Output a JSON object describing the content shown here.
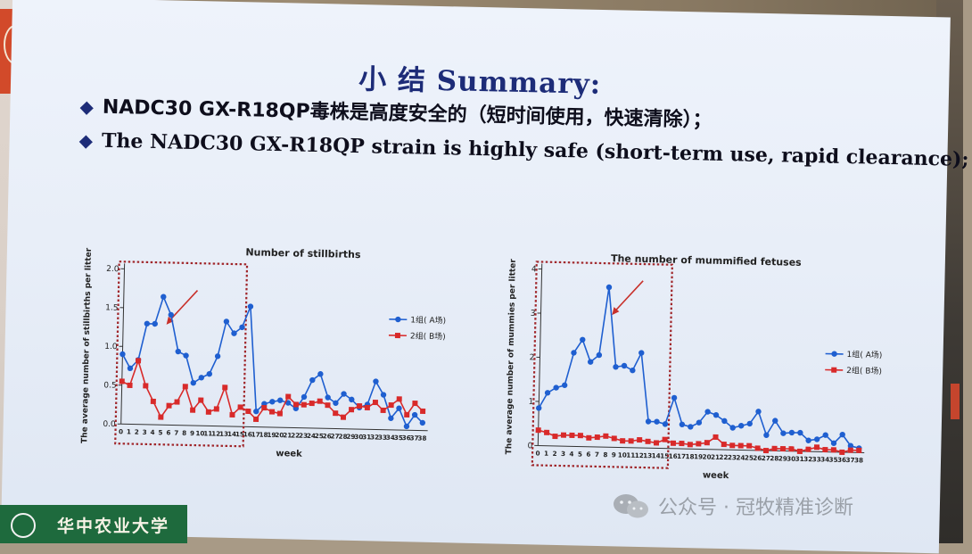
{
  "slide": {
    "title": "小 结 Summary:",
    "bullets": [
      "NADC30 GX-R18QP毒株是高度安全的（短时间使用，快速清除）；",
      "The NADC30 GX-R18QP strain is highly safe (short-term use, rapid clearance);"
    ],
    "bullet_icon": "diamond-bullet-icon"
  },
  "footer": {
    "university": "华中农业大学",
    "watermark": "公众号 · 冠牧精准诊断",
    "watermark_icon": "wechat-icon"
  },
  "chart_data": [
    {
      "type": "line",
      "title": "Number of stillbirths",
      "xlabel": "week",
      "ylabel": "The average number of stillbirths per litter",
      "x": [
        0,
        1,
        2,
        3,
        4,
        5,
        6,
        7,
        8,
        9,
        10,
        11,
        12,
        13,
        14,
        15,
        16,
        17,
        18,
        19,
        20,
        21,
        22,
        23,
        24,
        25,
        26,
        27,
        28,
        29,
        30,
        31,
        32,
        33,
        34,
        35,
        36,
        37,
        38
      ],
      "ylim": [
        0,
        2.0
      ],
      "yticks": [
        "0.0",
        "0.5",
        "1.0",
        "1.5",
        "2.0"
      ],
      "legend_position": "right",
      "highlight_box_weeks": [
        0,
        15
      ],
      "series": [
        {
          "name": "1组( A场)",
          "color": "#1f5fd0",
          "marker": "circle",
          "values": [
            0.9,
            0.72,
            0.83,
            1.3,
            1.3,
            1.65,
            1.42,
            0.95,
            0.9,
            0.55,
            0.62,
            0.67,
            0.9,
            1.35,
            1.2,
            1.28,
            1.55,
            0.2,
            0.3,
            0.33,
            0.35,
            0.32,
            0.25,
            0.4,
            0.62,
            0.7,
            0.4,
            0.33,
            0.45,
            0.38,
            0.28,
            0.32,
            0.62,
            0.45,
            0.15,
            0.28,
            0.05,
            0.2,
            0.1
          ]
        },
        {
          "name": "2组( B场)",
          "color": "#d82a2a",
          "marker": "square",
          "values": [
            0.55,
            0.5,
            0.82,
            0.5,
            0.3,
            0.1,
            0.25,
            0.3,
            0.5,
            0.2,
            0.33,
            0.18,
            0.22,
            0.5,
            0.15,
            0.25,
            0.2,
            0.1,
            0.25,
            0.2,
            0.18,
            0.4,
            0.3,
            0.3,
            0.32,
            0.35,
            0.3,
            0.2,
            0.15,
            0.25,
            0.3,
            0.28,
            0.35,
            0.25,
            0.32,
            0.4,
            0.2,
            0.35,
            0.25
          ]
        }
      ]
    },
    {
      "type": "line",
      "title": "The number of mummified fetuses",
      "xlabel": "week",
      "ylabel": "The average number of mummies per litter",
      "x": [
        0,
        1,
        2,
        3,
        4,
        5,
        6,
        7,
        8,
        9,
        10,
        11,
        12,
        13,
        14,
        15,
        16,
        17,
        18,
        19,
        20,
        21,
        22,
        23,
        24,
        25,
        26,
        27,
        28,
        29,
        30,
        31,
        32,
        33,
        34,
        35,
        36,
        37,
        38
      ],
      "ylim": [
        0,
        4
      ],
      "yticks": [
        "0",
        "1",
        "2",
        "3",
        "4"
      ],
      "legend_position": "right",
      "highlight_box_weeks": [
        0,
        15
      ],
      "series": [
        {
          "name": "1组( A场)",
          "color": "#1f5fd0",
          "marker": "circle",
          "values": [
            0.85,
            1.2,
            1.32,
            1.38,
            2.12,
            2.42,
            1.92,
            2.08,
            3.62,
            1.82,
            1.85,
            1.75,
            2.15,
            0.6,
            0.6,
            0.55,
            1.15,
            0.55,
            0.5,
            0.6,
            0.85,
            0.78,
            0.65,
            0.5,
            0.55,
            0.6,
            0.88,
            0.35,
            0.68,
            0.4,
            0.42,
            0.42,
            0.25,
            0.28,
            0.38,
            0.2,
            0.4,
            0.15,
            0.1
          ]
        },
        {
          "name": "2组( B场)",
          "color": "#d82a2a",
          "marker": "square",
          "values": [
            0.35,
            0.3,
            0.22,
            0.25,
            0.25,
            0.25,
            0.2,
            0.22,
            0.25,
            0.2,
            0.15,
            0.15,
            0.18,
            0.15,
            0.12,
            0.2,
            0.12,
            0.12,
            0.1,
            0.12,
            0.15,
            0.28,
            0.12,
            0.1,
            0.1,
            0.1,
            0.05,
            0.0,
            0.05,
            0.05,
            0.05,
            0.0,
            0.05,
            0.1,
            0.05,
            0.05,
            0.0,
            0.05,
            0.05
          ]
        }
      ]
    }
  ]
}
